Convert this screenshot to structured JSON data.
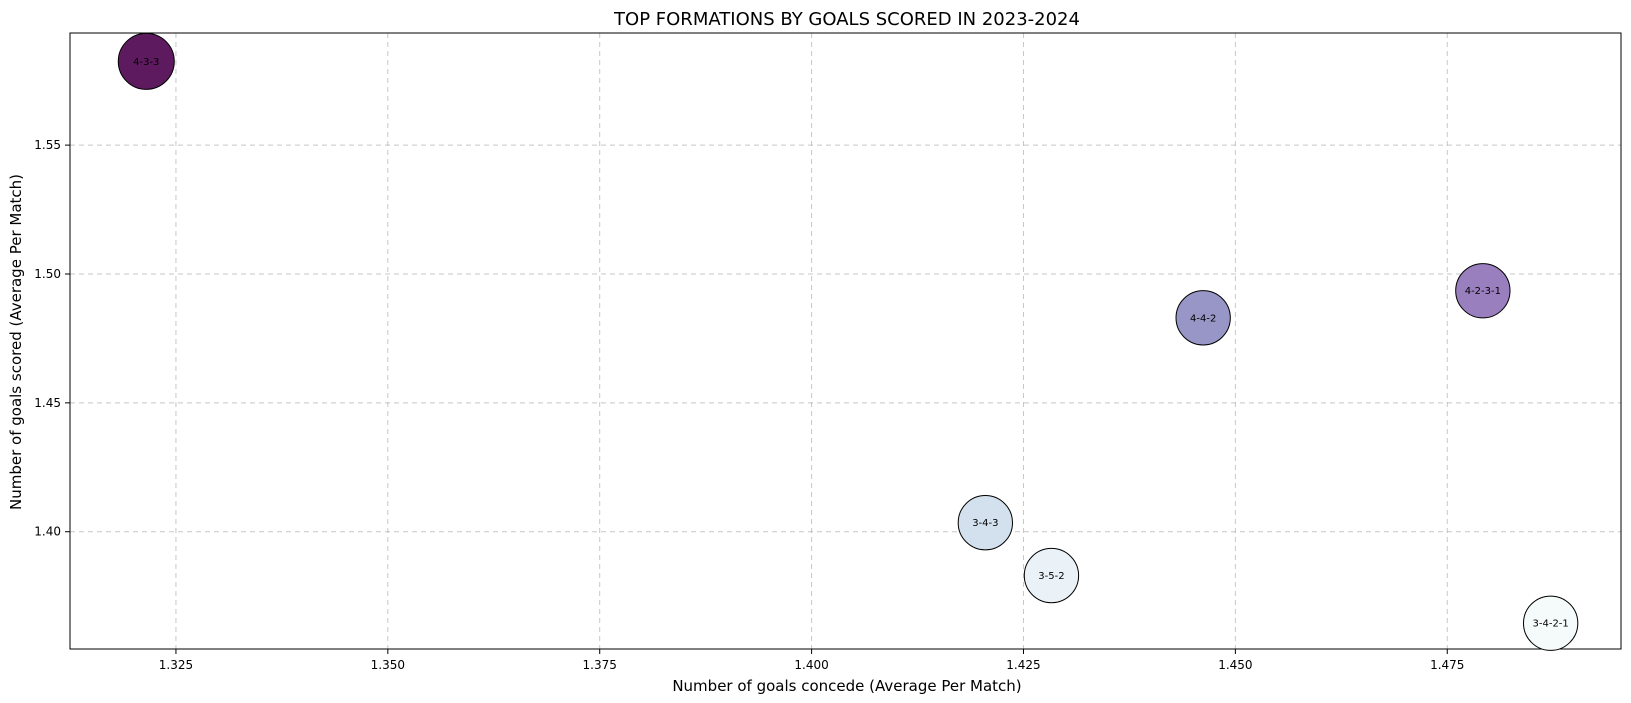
{
  "chart_data": {
    "type": "scatter",
    "title": "TOP FORMATIONS BY GOALS SCORED IN 2023-2024",
    "xlabel": "Number of goals concede (Average Per Match)",
    "ylabel": "Number of goals scored (Average Per Match)",
    "xlim": [
      1.3125,
      1.4955
    ],
    "ylim": [
      1.3545,
      1.5935
    ],
    "xticks": [
      1.325,
      1.35,
      1.375,
      1.4,
      1.425,
      1.45,
      1.475
    ],
    "xtick_labels": [
      "1.325",
      "1.350",
      "1.375",
      "1.400",
      "1.425",
      "1.450",
      "1.475"
    ],
    "yticks": [
      1.4,
      1.45,
      1.5,
      1.55
    ],
    "ytick_labels": [
      "1.40",
      "1.45",
      "1.50",
      "1.55"
    ],
    "grid": true,
    "points": [
      {
        "label": "4-3-3",
        "x": 1.3215,
        "y": 1.5825,
        "color": "#5e1a5e",
        "size": 1.0
      },
      {
        "label": "4-2-3-1",
        "x": 1.4792,
        "y": 1.4935,
        "color": "#9a7fbe",
        "size": 0.97
      },
      {
        "label": "4-4-2",
        "x": 1.4462,
        "y": 1.483,
        "color": "#9896c6",
        "size": 0.97
      },
      {
        "label": "3-4-3",
        "x": 1.4205,
        "y": 1.4035,
        "color": "#d3e1ee",
        "size": 0.97
      },
      {
        "label": "3-5-2",
        "x": 1.4283,
        "y": 1.383,
        "color": "#eaf1f7",
        "size": 0.97
      },
      {
        "label": "3-4-2-1",
        "x": 1.4872,
        "y": 1.3645,
        "color": "#f5fafa",
        "size": 0.97
      }
    ]
  }
}
